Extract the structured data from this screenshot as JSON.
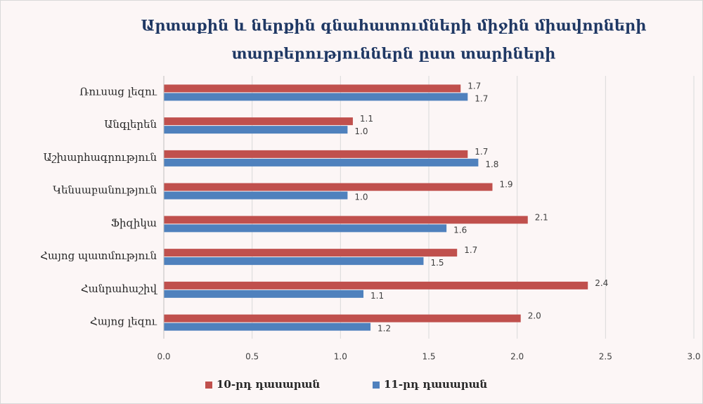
{
  "chart_data": {
    "type": "barh",
    "title": [
      "Արտաքին և ներքին գնահատումների միջին միավորների",
      "տարբերություններն ըստ տարիների"
    ],
    "categories": [
      "Ռուսաց լեզու",
      "Անգլերեն",
      "Աշխարհագրություն",
      "Կենսաբանություն",
      "Ֆիզիկա",
      "Հայոց պատմություն",
      "Հանրահաշիվ",
      "Հայոց լեզու"
    ],
    "series": [
      {
        "name": "10-րդ դասարան",
        "color": "#c0504d",
        "values": [
          1.68,
          1.07,
          1.72,
          1.86,
          2.06,
          1.66,
          2.4,
          2.02
        ],
        "value_labels": [
          "1.7",
          "1.1",
          "1.7",
          "1.9",
          "2.1",
          "1.7",
          "2.4",
          "2.0"
        ]
      },
      {
        "name": "11-րդ դասարան",
        "color": "#4f81bd",
        "values": [
          1.72,
          1.04,
          1.78,
          1.04,
          1.6,
          1.47,
          1.13,
          1.17
        ],
        "value_labels": [
          "1.7",
          "1.0",
          "1.8",
          "1.0",
          "1.6",
          "1.5",
          "1.1",
          "1.2"
        ]
      }
    ],
    "xlim": [
      0,
      3
    ],
    "xticks": [
      {
        "value": 0,
        "label": "0.0"
      },
      0.5,
      {
        "value": 1,
        "label": "1.0"
      },
      1.5,
      {
        "value": 2,
        "label": "2.0"
      },
      2.5,
      {
        "value": 3,
        "label": "3.0"
      }
    ],
    "grid": true,
    "legend": "bottom"
  }
}
